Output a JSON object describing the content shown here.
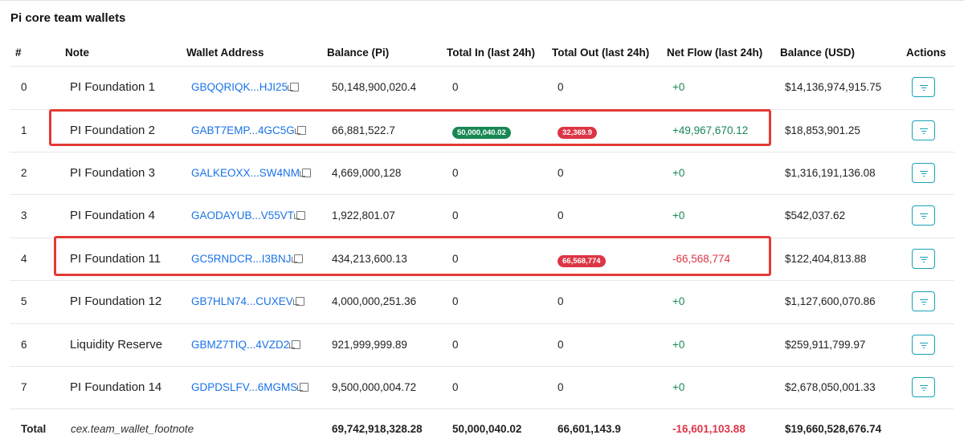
{
  "title": "Pi core team wallets",
  "columns": [
    "#",
    "Note",
    "Wallet Address",
    "Balance (Pi)",
    "Total In (last 24h)",
    "Total Out (last 24h)",
    "Net Flow (last 24h)",
    "Balance (USD)",
    "Actions"
  ],
  "rows": [
    {
      "idx": "0",
      "note": "PI Foundation 1",
      "address": "GBQQRIQK...HJI25",
      "balance": "50,148,900,020.4",
      "total_in": "0",
      "total_out": "0",
      "net_flow": "+0",
      "usd": "$14,136,974,915.75"
    },
    {
      "idx": "1",
      "note": "PI Foundation 2",
      "address": "GABT7EMP...4GC5G",
      "balance": "66,881,522.7",
      "total_in": "50,000,040.02",
      "total_out": "32,369.9",
      "net_flow": "+49,967,670.12",
      "usd": "$18,853,901.25"
    },
    {
      "idx": "2",
      "note": "PI Foundation 3",
      "address": "GALKEOXX...SW4NM",
      "balance": "4,669,000,128",
      "total_in": "0",
      "total_out": "0",
      "net_flow": "+0",
      "usd": "$1,316,191,136.08"
    },
    {
      "idx": "3",
      "note": "PI Foundation 4",
      "address": "GAODAYUB...V55VT",
      "balance": "1,922,801.07",
      "total_in": "0",
      "total_out": "0",
      "net_flow": "+0",
      "usd": "$542,037.62"
    },
    {
      "idx": "4",
      "note": "PI Foundation 11",
      "address": "GC5RNDCR...I3BNJ",
      "balance": "434,213,600.13",
      "total_in": "0",
      "total_out": "66,568,774",
      "net_flow": "-66,568,774",
      "usd": "$122,404,813.88"
    },
    {
      "idx": "5",
      "note": "PI Foundation 12",
      "address": "GB7HLN74...CUXEV",
      "balance": "4,000,000,251.36",
      "total_in": "0",
      "total_out": "0",
      "net_flow": "+0",
      "usd": "$1,127,600,070.86"
    },
    {
      "idx": "6",
      "note": "Liquidity Reserve",
      "address": "GBMZ7TIQ...4VZD2",
      "balance": "921,999,999.89",
      "total_in": "0",
      "total_out": "0",
      "net_flow": "+0",
      "usd": "$259,911,799.97"
    },
    {
      "idx": "7",
      "note": "PI Foundation 14",
      "address": "GDPDSLFV...6MGMS",
      "balance": "9,500,000,004.72",
      "total_in": "0",
      "total_out": "0",
      "net_flow": "+0",
      "usd": "$2,678,050,001.33"
    }
  ],
  "total": {
    "label": "Total",
    "footnote": "cex.team_wallet_footnote",
    "balance": "69,742,918,328.28",
    "total_in": "50,000,040.02",
    "total_out": "66,601,143.9",
    "net_flow": "-16,601,103.88",
    "usd": "$19,660,528,676.74"
  },
  "colors": {
    "positive": "#198754",
    "negative": "#dc3545",
    "link": "#1a73e8",
    "action_border": "#17a2b8",
    "highlight": "#e53935"
  },
  "icons": {
    "copy": "copy-icon",
    "action": "filter-icon"
  }
}
